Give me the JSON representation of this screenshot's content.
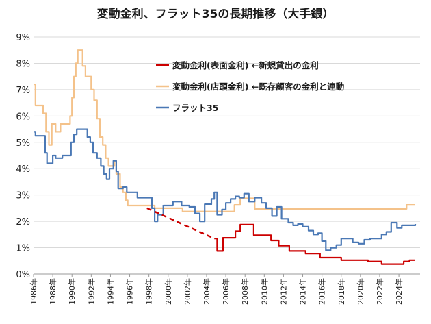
{
  "chart_data": {
    "type": "line",
    "title": "変動金利、フラット35の長期推移（大手銀）",
    "xlabel": "",
    "ylabel": "",
    "xlim": [
      1986,
      2026.2
    ],
    "ylim": [
      0,
      9
    ],
    "yticks": [
      "0%",
      "1%",
      "2%",
      "3%",
      "4%",
      "5%",
      "6%",
      "7%",
      "8%",
      "9%"
    ],
    "xticks": [
      "1986年",
      "1988年",
      "1990年",
      "1992年",
      "1994年",
      "1996年",
      "1998年",
      "2000年",
      "2002年",
      "2004年",
      "2006年",
      "2008年",
      "2010年",
      "2012年",
      "2014年",
      "2016年",
      "2018年",
      "2020年",
      "2022年",
      "2024年"
    ],
    "grid": "horizontal",
    "legend_position": "top-right",
    "series": [
      {
        "name": "変動金利(表面金利) ←新規貸出の金利",
        "color": "#cc0000",
        "step": true,
        "points": [
          [
            2004.8,
            1.35
          ],
          [
            2005.1,
            0.875
          ],
          [
            2005.7,
            1.375
          ],
          [
            2007.0,
            1.625
          ],
          [
            2007.5,
            1.875
          ],
          [
            2008.9,
            1.475
          ],
          [
            2009.8,
            1.475
          ],
          [
            2010.7,
            1.275
          ],
          [
            2011.5,
            1.075
          ],
          [
            2012.6,
            0.875
          ],
          [
            2013.4,
            0.875
          ],
          [
            2014.3,
            0.775
          ],
          [
            2015.8,
            0.625
          ],
          [
            2017.3,
            0.625
          ],
          [
            2018.0,
            0.525
          ],
          [
            2020.0,
            0.525
          ],
          [
            2020.8,
            0.475
          ],
          [
            2022.2,
            0.375
          ],
          [
            2024.5,
            0.475
          ],
          [
            2025.1,
            0.525
          ],
          [
            2025.7,
            0.525
          ]
        ]
      },
      {
        "name": "変動金利(店頭金利) ←既存顧客の金利と連動",
        "color": "#f4c28a",
        "step": true,
        "points": [
          [
            1986.0,
            7.2
          ],
          [
            1986.2,
            6.4
          ],
          [
            1987.0,
            6.1
          ],
          [
            1987.3,
            5.4
          ],
          [
            1987.6,
            4.9
          ],
          [
            1987.9,
            5.7
          ],
          [
            1988.3,
            5.4
          ],
          [
            1988.8,
            5.7
          ],
          [
            1989.5,
            5.7
          ],
          [
            1989.8,
            6.0
          ],
          [
            1990.0,
            6.7
          ],
          [
            1990.2,
            7.5
          ],
          [
            1990.4,
            8.0
          ],
          [
            1990.6,
            8.5
          ],
          [
            1991.1,
            7.9
          ],
          [
            1991.4,
            7.5
          ],
          [
            1992.0,
            7.0
          ],
          [
            1992.3,
            6.6
          ],
          [
            1992.6,
            5.9
          ],
          [
            1992.9,
            5.2
          ],
          [
            1993.2,
            4.9
          ],
          [
            1993.5,
            4.4
          ],
          [
            1993.8,
            4.1
          ],
          [
            1994.4,
            4.3
          ],
          [
            1994.6,
            3.8
          ],
          [
            1995.0,
            3.3
          ],
          [
            1995.3,
            3.1
          ],
          [
            1995.6,
            2.8
          ],
          [
            1995.8,
            2.6
          ],
          [
            1998.4,
            2.6
          ],
          [
            1998.6,
            2.5
          ],
          [
            2001.1,
            2.5
          ],
          [
            2001.5,
            2.375
          ],
          [
            2006.6,
            2.375
          ],
          [
            2006.9,
            2.625
          ],
          [
            2007.5,
            2.875
          ],
          [
            2009.0,
            2.475
          ],
          [
            2012.0,
            2.475
          ],
          [
            2017.0,
            2.475
          ],
          [
            2024.6,
            2.475
          ],
          [
            2024.8,
            2.625
          ],
          [
            2025.7,
            2.625
          ]
        ]
      },
      {
        "name": "フラット35",
        "color": "#4a78b5",
        "step": true,
        "points": [
          [
            1986.0,
            5.4
          ],
          [
            1986.2,
            5.25
          ],
          [
            1987.0,
            5.25
          ],
          [
            1987.2,
            4.6
          ],
          [
            1987.4,
            4.2
          ],
          [
            1988.0,
            4.5
          ],
          [
            1988.3,
            4.4
          ],
          [
            1988.8,
            4.4
          ],
          [
            1989.0,
            4.5
          ],
          [
            1989.5,
            4.5
          ],
          [
            1989.9,
            5.0
          ],
          [
            1990.2,
            5.3
          ],
          [
            1990.5,
            5.5
          ],
          [
            1991.6,
            5.2
          ],
          [
            1991.9,
            5.0
          ],
          [
            1992.2,
            4.6
          ],
          [
            1992.6,
            4.4
          ],
          [
            1993.0,
            4.1
          ],
          [
            1993.3,
            3.8
          ],
          [
            1993.6,
            3.6
          ],
          [
            1993.9,
            4.0
          ],
          [
            1994.3,
            4.3
          ],
          [
            1994.6,
            3.9
          ],
          [
            1994.8,
            3.25
          ],
          [
            1995.3,
            3.3
          ],
          [
            1995.7,
            3.1
          ],
          [
            1996.4,
            3.1
          ],
          [
            1996.8,
            2.9
          ],
          [
            1997.7,
            2.9
          ],
          [
            1998.3,
            2.5
          ],
          [
            1998.6,
            2.0
          ],
          [
            1998.9,
            2.25
          ],
          [
            1999.5,
            2.6
          ],
          [
            2000.5,
            2.75
          ],
          [
            2001.4,
            2.6
          ],
          [
            2002.2,
            2.55
          ],
          [
            2002.8,
            2.3
          ],
          [
            2003.3,
            2.0
          ],
          [
            2003.8,
            2.65
          ],
          [
            2004.5,
            2.85
          ],
          [
            2004.8,
            3.1
          ],
          [
            2005.1,
            2.25
          ],
          [
            2005.6,
            2.45
          ],
          [
            2006.0,
            2.7
          ],
          [
            2006.5,
            2.85
          ],
          [
            2007.0,
            2.95
          ],
          [
            2007.4,
            2.9
          ],
          [
            2007.9,
            3.05
          ],
          [
            2008.4,
            2.75
          ],
          [
            2009.0,
            2.9
          ],
          [
            2009.7,
            2.7
          ],
          [
            2010.2,
            2.5
          ],
          [
            2010.8,
            2.2
          ],
          [
            2011.3,
            2.55
          ],
          [
            2011.8,
            2.1
          ],
          [
            2012.5,
            1.95
          ],
          [
            2013.0,
            1.85
          ],
          [
            2013.5,
            1.9
          ],
          [
            2014.0,
            1.8
          ],
          [
            2014.6,
            1.65
          ],
          [
            2015.1,
            1.5
          ],
          [
            2015.6,
            1.55
          ],
          [
            2016.0,
            1.25
          ],
          [
            2016.4,
            0.9
          ],
          [
            2016.9,
            1.0
          ],
          [
            2017.5,
            1.1
          ],
          [
            2018.0,
            1.35
          ],
          [
            2018.6,
            1.35
          ],
          [
            2019.2,
            1.2
          ],
          [
            2019.8,
            1.15
          ],
          [
            2020.4,
            1.3
          ],
          [
            2021.0,
            1.35
          ],
          [
            2021.6,
            1.35
          ],
          [
            2022.2,
            1.5
          ],
          [
            2022.7,
            1.6
          ],
          [
            2023.2,
            1.95
          ],
          [
            2023.8,
            1.75
          ],
          [
            2024.3,
            1.85
          ],
          [
            2024.9,
            1.85
          ],
          [
            2025.4,
            1.85
          ],
          [
            2025.7,
            1.9
          ]
        ]
      },
      {
        "name": "",
        "color": "#cc0000",
        "dashed": true,
        "points": [
          [
            1997.8,
            2.5
          ],
          [
            2004.8,
            1.35
          ]
        ]
      }
    ]
  }
}
